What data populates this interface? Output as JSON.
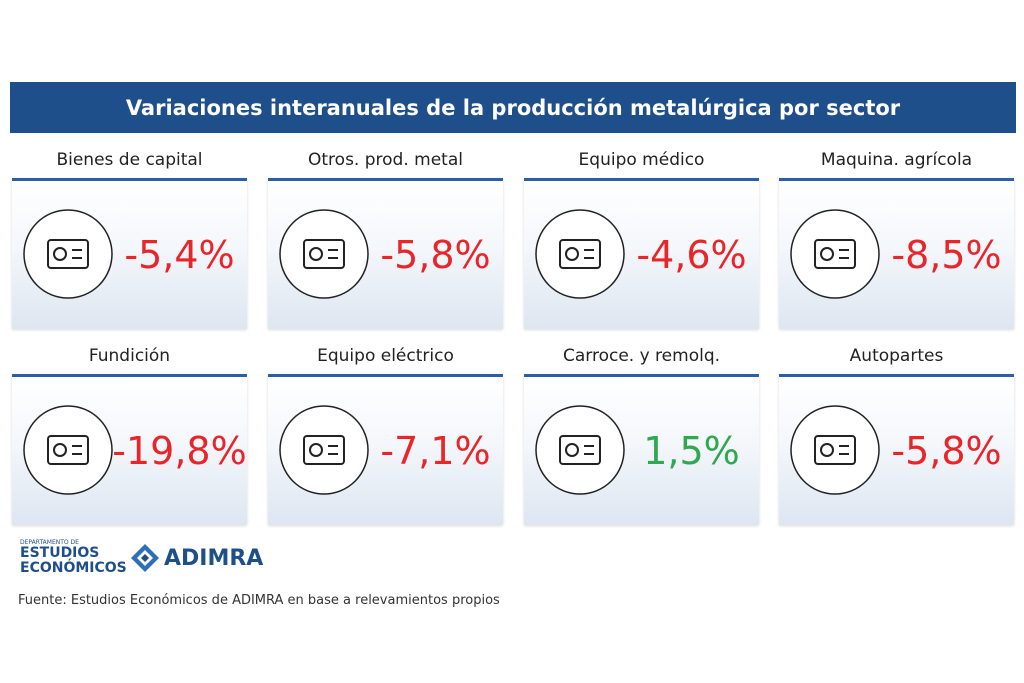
{
  "header": {
    "title": "Variaciones interanuales de la producción metalúrgica por sector"
  },
  "cards": [
    {
      "label": "Bienes de capital",
      "value": "-5,4%",
      "color": "#e8262a"
    },
    {
      "label": "Otros. prod. metal",
      "value": "-5,8%",
      "color": "#e8262a"
    },
    {
      "label": "Equipo médico",
      "value": "-4,6%",
      "color": "#e8262a"
    },
    {
      "label": "Maquina. agrícola",
      "value": "-8,5%",
      "color": "#e8262a"
    },
    {
      "label": "Fundición",
      "value": "-19,8%",
      "color": "#e8262a"
    },
    {
      "label": "Equipo eléctrico",
      "value": "-7,1%",
      "color": "#e8262a"
    },
    {
      "label": "Carroce. y remolq.",
      "value": "1,5%",
      "color": "#2fa84f"
    },
    {
      "label": "Autopartes",
      "value": "-5,8%",
      "color": "#e8262a"
    }
  ],
  "logos": {
    "department": [
      "DEPARTAMENTO DE",
      "ESTUDIOS",
      "ECONÓMICOS"
    ],
    "adimra": "ADIMRA"
  },
  "source": "Fuente: Estudios Económicos de ADIMRA en base a relevamientos propios"
}
